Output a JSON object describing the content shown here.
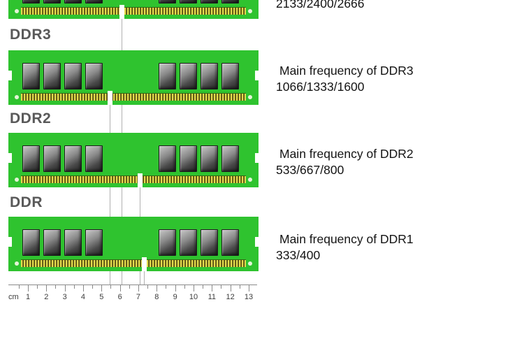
{
  "modules": [
    {
      "id": "ddr4",
      "label": "",
      "freq_line1": "",
      "freq_line2": "2133/2400/2666"
    },
    {
      "id": "ddr3",
      "label": "DDR3",
      "freq_line1": "Main frequency of DDR3",
      "freq_line2": "1066/1333/1600"
    },
    {
      "id": "ddr2",
      "label": "DDR2",
      "freq_line1": "Main frequency of DDR2",
      "freq_line2": "533/667/800"
    },
    {
      "id": "ddr1",
      "label": "DDR",
      "freq_line1": "Main frequency of DDR1",
      "freq_line2": "333/400"
    }
  ],
  "ruler": {
    "unit": "cm",
    "numbers": [
      "1",
      "2",
      "3",
      "4",
      "5",
      "6",
      "7",
      "8",
      "9",
      "10",
      "11",
      "12",
      "13"
    ]
  },
  "colors": {
    "module_green": "#2fc32f",
    "pin_gold": "#ded63f",
    "guide_line": "#b0b0b0",
    "heading": "#595959"
  }
}
